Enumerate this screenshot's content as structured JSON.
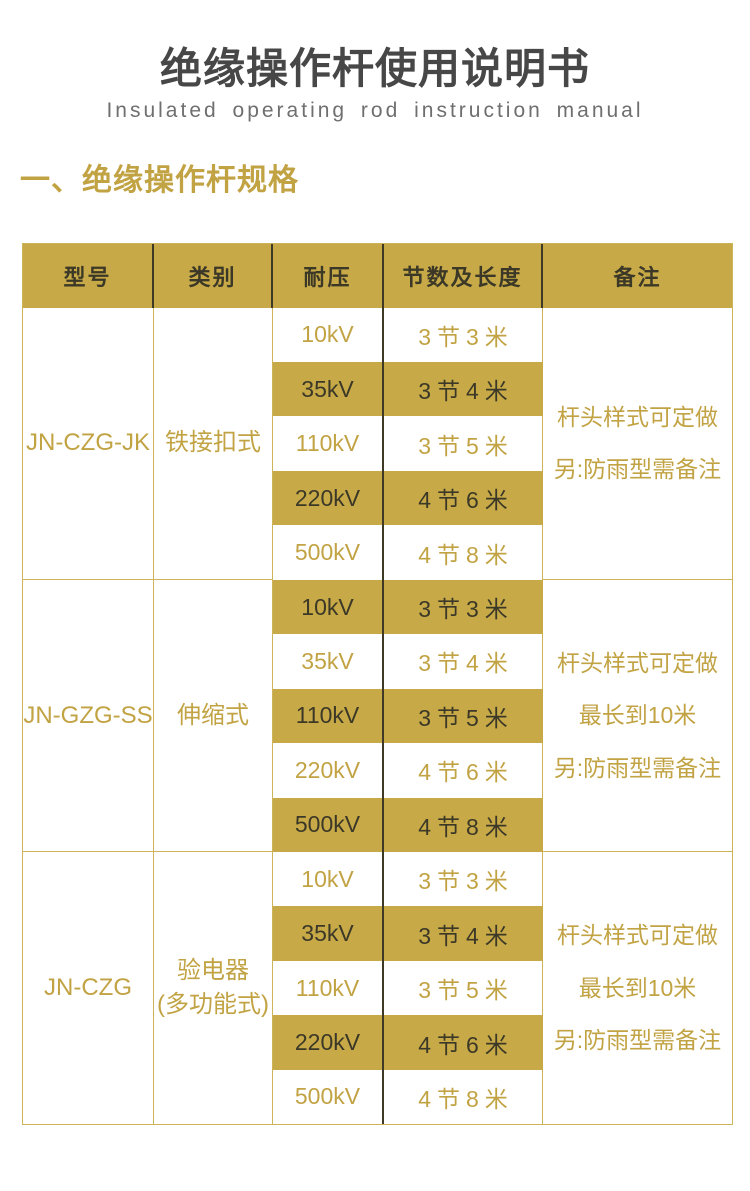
{
  "page": {
    "title": "绝缘操作杆使用说明书",
    "subtitle": "Insulated operating rod instruction manual",
    "section_heading": "一、绝缘操作杆规格"
  },
  "colors": {
    "gold_bg": "#C7AA47",
    "gold_text": "#C2A344",
    "dark_text": "#3C3827",
    "gold_line": "#CDB35A",
    "dark_line": "#3E3A26",
    "title_text": "#474747",
    "subtitle_text": "#6F6F6F"
  },
  "table": {
    "headers": [
      "型号",
      "类别",
      "耐压",
      "节数及长度",
      "备注"
    ],
    "groups": [
      {
        "model": "JN-CZG-JK",
        "category_lines": [
          "铁接扣式"
        ],
        "remark_lines": [
          "杆头样式可定做",
          "另:防雨型需备注"
        ],
        "rows": [
          {
            "voltage": "10kV",
            "length": "3节3米",
            "band": false
          },
          {
            "voltage": "35kV",
            "length": "3节4米",
            "band": true
          },
          {
            "voltage": "110kV",
            "length": "3节5米",
            "band": false
          },
          {
            "voltage": "220kV",
            "length": "4节6米",
            "band": true
          },
          {
            "voltage": "500kV",
            "length": "4节8米",
            "band": false
          }
        ]
      },
      {
        "model": "JN-GZG-SS",
        "category_lines": [
          "伸缩式"
        ],
        "remark_lines": [
          "杆头样式可定做",
          "最长到10米",
          "另:防雨型需备注"
        ],
        "rows": [
          {
            "voltage": "10kV",
            "length": "3节3米",
            "band": true
          },
          {
            "voltage": "35kV",
            "length": "3节4米",
            "band": false
          },
          {
            "voltage": "110kV",
            "length": "3节5米",
            "band": true
          },
          {
            "voltage": "220kV",
            "length": "4节6米",
            "band": false
          },
          {
            "voltage": "500kV",
            "length": "4节8米",
            "band": true
          }
        ]
      },
      {
        "model": "JN-CZG",
        "category_lines": [
          "验电器",
          "(多功能式)"
        ],
        "remark_lines": [
          "杆头样式可定做",
          "最长到10米",
          "另:防雨型需备注"
        ],
        "rows": [
          {
            "voltage": "10kV",
            "length": "3节3米",
            "band": false
          },
          {
            "voltage": "35kV",
            "length": "3节4米",
            "band": true
          },
          {
            "voltage": "110kV",
            "length": "3节5米",
            "band": false
          },
          {
            "voltage": "220kV",
            "length": "4节6米",
            "band": true
          },
          {
            "voltage": "500kV",
            "length": "4节8米",
            "band": false
          }
        ]
      }
    ]
  }
}
